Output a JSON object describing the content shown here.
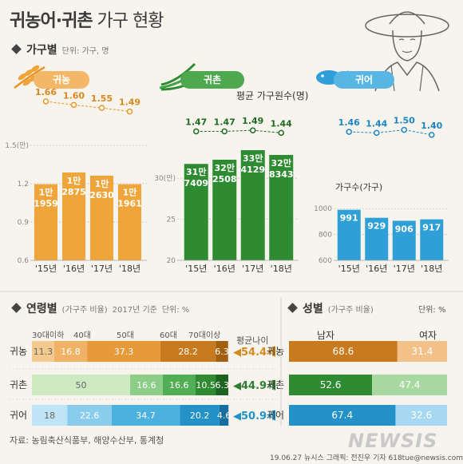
{
  "title_main": "귀농어·귀촌",
  "title_rest": " 가구 현황",
  "sections": {
    "households": {
      "label": "가구별",
      "unit": "단위: 가구, 명"
    },
    "age": {
      "label": "연령별",
      "sub": "(가구주 비율)",
      "basis": "2017년 기준",
      "unit": "단위: %"
    },
    "gender": {
      "label": "성별",
      "sub": "(가구주 비율)",
      "unit": "단위: %"
    }
  },
  "tags": {
    "farming": "귀농",
    "rural": "귀촌",
    "fishing": "귀어"
  },
  "avg_members_label": "평균 가구원수(명)",
  "households_count_label": "가구수(가구)",
  "age_groups": [
    "30대이하",
    "40대",
    "50대",
    "60대",
    "70대이상"
  ],
  "avg_age_label": "평균나이",
  "gender_labels": {
    "male": "남자",
    "female": "여자"
  },
  "source": "자료: 농림축산식품부, 해양수산부, 통계청",
  "credit": "19.06.27  뉴시스 그래픽: 전진우 기자 618tue@newsis.com",
  "logo": "NEWSIS",
  "chart_data": [
    {
      "name": "귀농",
      "type": "bar",
      "categories": [
        "'15년",
        "'16년",
        "'17년",
        "'18년"
      ],
      "values": [
        11959,
        12875,
        12630,
        11961
      ],
      "value_labels": [
        [
          "1만",
          "1959"
        ],
        [
          "1만",
          "2875"
        ],
        [
          "1만",
          "2630"
        ],
        [
          "1만",
          "1961"
        ]
      ],
      "yticks": [
        "1.5(만)",
        "1.2",
        "0.9",
        "0.6"
      ],
      "ytick_values": [
        15000,
        12000,
        9000,
        6000
      ],
      "ylim": [
        6000,
        15000
      ],
      "avg_members": [
        1.66,
        1.6,
        1.55,
        1.49
      ],
      "color": "#f0a53a",
      "line_color": "#e8952a"
    },
    {
      "name": "귀촌",
      "type": "bar",
      "categories": [
        "'15년",
        "'16년",
        "'17년",
        "'18년"
      ],
      "values": [
        317409,
        322508,
        334129,
        328343
      ],
      "value_labels": [
        [
          "31만",
          "7409"
        ],
        [
          "32만",
          "2508"
        ],
        [
          "33만",
          "4129"
        ],
        [
          "32만",
          "8343"
        ]
      ],
      "yticks": [
        "30(만)",
        "25",
        "20"
      ],
      "ytick_values": [
        300000,
        250000,
        200000
      ],
      "ylim": [
        200000,
        340000
      ],
      "avg_members": [
        1.47,
        1.47,
        1.49,
        1.44
      ],
      "color": "#2e8b32",
      "line_color": "#1f6b22"
    },
    {
      "name": "귀어",
      "type": "bar",
      "categories": [
        "'15년",
        "'16년",
        "'17년",
        "'18년"
      ],
      "values": [
        991,
        929,
        906,
        917
      ],
      "value_labels": [
        [
          "991"
        ],
        [
          "929"
        ],
        [
          "906"
        ],
        [
          "917"
        ]
      ],
      "yticks": [
        "1000",
        "800",
        "600"
      ],
      "ytick_values": [
        1000,
        800,
        600
      ],
      "ylim": [
        600,
        1100
      ],
      "avg_members": [
        1.46,
        1.44,
        1.5,
        1.4
      ],
      "color": "#2f9fd8",
      "line_color": "#1d86c2"
    },
    {
      "name": "연령별",
      "type": "bar",
      "stacked": true,
      "categories": [
        "귀농",
        "귀촌",
        "귀어"
      ],
      "series": [
        {
          "name": "30대이하",
          "values": [
            11.3,
            50,
            18
          ]
        },
        {
          "name": "40대",
          "values": [
            16.8,
            16.6,
            22.6
          ]
        },
        {
          "name": "50대",
          "values": [
            37.3,
            16.6,
            34.7
          ]
        },
        {
          "name": "60대",
          "values": [
            28.2,
            10.5,
            20.2
          ]
        },
        {
          "name": "70대이상",
          "values": [
            6.3,
            6.3,
            4.6
          ]
        }
      ],
      "value_text": [
        [
          "11.3",
          "16.8",
          "37.3",
          "28.2",
          "6.3"
        ],
        [
          "50",
          "16.6",
          "16.6",
          "10.5",
          "6.3"
        ],
        [
          "18",
          "22.6",
          "34.7",
          "20.2",
          "4.6"
        ]
      ],
      "avg_age": [
        "54.4세",
        "44.9세",
        "50.9세"
      ]
    },
    {
      "name": "성별",
      "type": "bar",
      "stacked": true,
      "categories": [
        "귀농",
        "귀촌",
        "귀어"
      ],
      "series": [
        {
          "name": "남자",
          "values": [
            68.6,
            52.6,
            67.4
          ]
        },
        {
          "name": "여자",
          "values": [
            31.4,
            47.4,
            32.6
          ]
        }
      ],
      "value_text": [
        [
          "68.6",
          "31.4"
        ],
        [
          "52.6",
          "47.4"
        ],
        [
          "67.4",
          "32.6"
        ]
      ]
    }
  ]
}
